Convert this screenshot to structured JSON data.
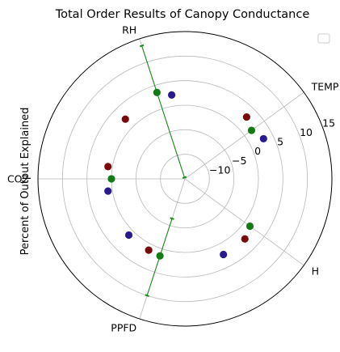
{
  "chart_data": {
    "type": "scatter",
    "projection": "polar",
    "title": "Total Order Results of Canopy Conductance",
    "ylabel": "Percent of Output Explained",
    "categories": [
      "TEMP",
      "RH",
      "CO2",
      "PPFD",
      "H"
    ],
    "category_angles_deg": [
      36,
      108,
      180,
      252,
      324
    ],
    "radial_range": [
      -15,
      15
    ],
    "radial_ticks": [
      -10,
      -5,
      0,
      5,
      10,
      15
    ],
    "grid": true,
    "legend": "top-right",
    "legend_entries": [],
    "colors": {
      "dark_red": "#7a0a0a",
      "blue": "#2a1a8f",
      "green": "#147a14",
      "green_line": "#1a8a1a",
      "grid": "#b8b8b8"
    },
    "dark_red_points": [
      {
        "category": "TEMP",
        "angle_deg": 45,
        "r": 2.8
      },
      {
        "category": "RH",
        "angle_deg": 135,
        "r": 2.2
      },
      {
        "category": "CO2",
        "angle_deg": 171,
        "r": 0.9
      },
      {
        "category": "PPFD",
        "angle_deg": 243,
        "r": 1.3
      },
      {
        "category": "H",
        "angle_deg": 315,
        "r": 2.3
      }
    ],
    "blue_points": [
      {
        "category": "TEMP",
        "angle_deg": 27,
        "r": 3.0
      },
      {
        "category": "RH",
        "angle_deg": 99,
        "r": 2.3
      },
      {
        "category": "CO2",
        "angle_deg": 189,
        "r": 0.9
      },
      {
        "category": "PPFD",
        "angle_deg": 225,
        "r": 1.2
      },
      {
        "category": "H",
        "angle_deg": 297,
        "r": 2.3
      }
    ],
    "green_points": [
      {
        "category": "TEMP",
        "angle_deg": 36,
        "r": 1.8
      },
      {
        "category": "RH",
        "angle_deg": 108,
        "r": 3.5
      },
      {
        "category": "CO2",
        "angle_deg": 180,
        "r": 0.0
      },
      {
        "category": "PPFD",
        "angle_deg": 252,
        "r": 1.5
      },
      {
        "category": "H",
        "angle_deg": 324,
        "r": 1.4
      }
    ],
    "green_error_bars": [
      {
        "category": "RH",
        "angle_deg": 108,
        "low": -14.7,
        "high": 13.5
      },
      {
        "category": "PPFD",
        "angle_deg": 252,
        "low": -6.5,
        "high": 10.0
      }
    ]
  }
}
